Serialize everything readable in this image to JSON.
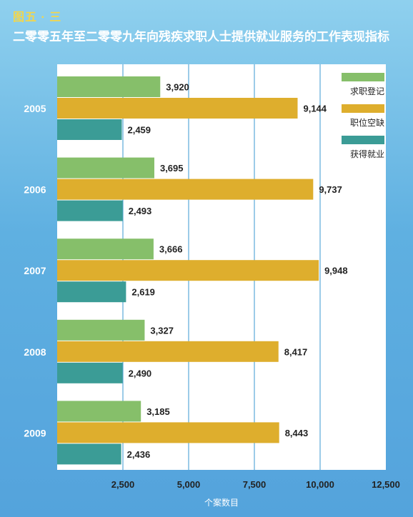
{
  "figure_number": "图五 · 三",
  "title": "二零零五年至二零零九年向残疾求职人士提供就业服务的工作表现指标",
  "colors": {
    "求职登记": "#86bf6a",
    "职位空缺": "#deae2d",
    "获得就业": "#3b9c96",
    "plot_bg": "#ffffff",
    "gridline": "#5aa9d9",
    "text": "#222222"
  },
  "chart_data": {
    "type": "bar",
    "orientation": "horizontal",
    "categories": [
      "2005",
      "2006",
      "2007",
      "2008",
      "2009"
    ],
    "series": [
      {
        "name": "求职登记",
        "values": [
          3920,
          3695,
          3666,
          3327,
          3185
        ],
        "labels": [
          "3,920",
          "3,695",
          "3,666",
          "3,327",
          "3,185"
        ]
      },
      {
        "name": "职位空缺",
        "values": [
          9144,
          9737,
          9948,
          8417,
          8443
        ],
        "labels": [
          "9,144",
          "9,737",
          "9,948",
          "8,417",
          "8,443"
        ]
      },
      {
        "name": "获得就业",
        "values": [
          2459,
          2493,
          2619,
          2490,
          2436
        ],
        "labels": [
          "2,459",
          "2,493",
          "2,619",
          "2,490",
          "2,436"
        ]
      }
    ],
    "xlabel": "个案数目",
    "xlim": [
      0,
      12500
    ],
    "xticks": [
      2500,
      5000,
      7500,
      10000,
      12500
    ],
    "xtick_labels": [
      "2,500",
      "5,000",
      "7,500",
      "10,000",
      "12,500"
    ],
    "grid": true,
    "legend_position": "top-right"
  }
}
